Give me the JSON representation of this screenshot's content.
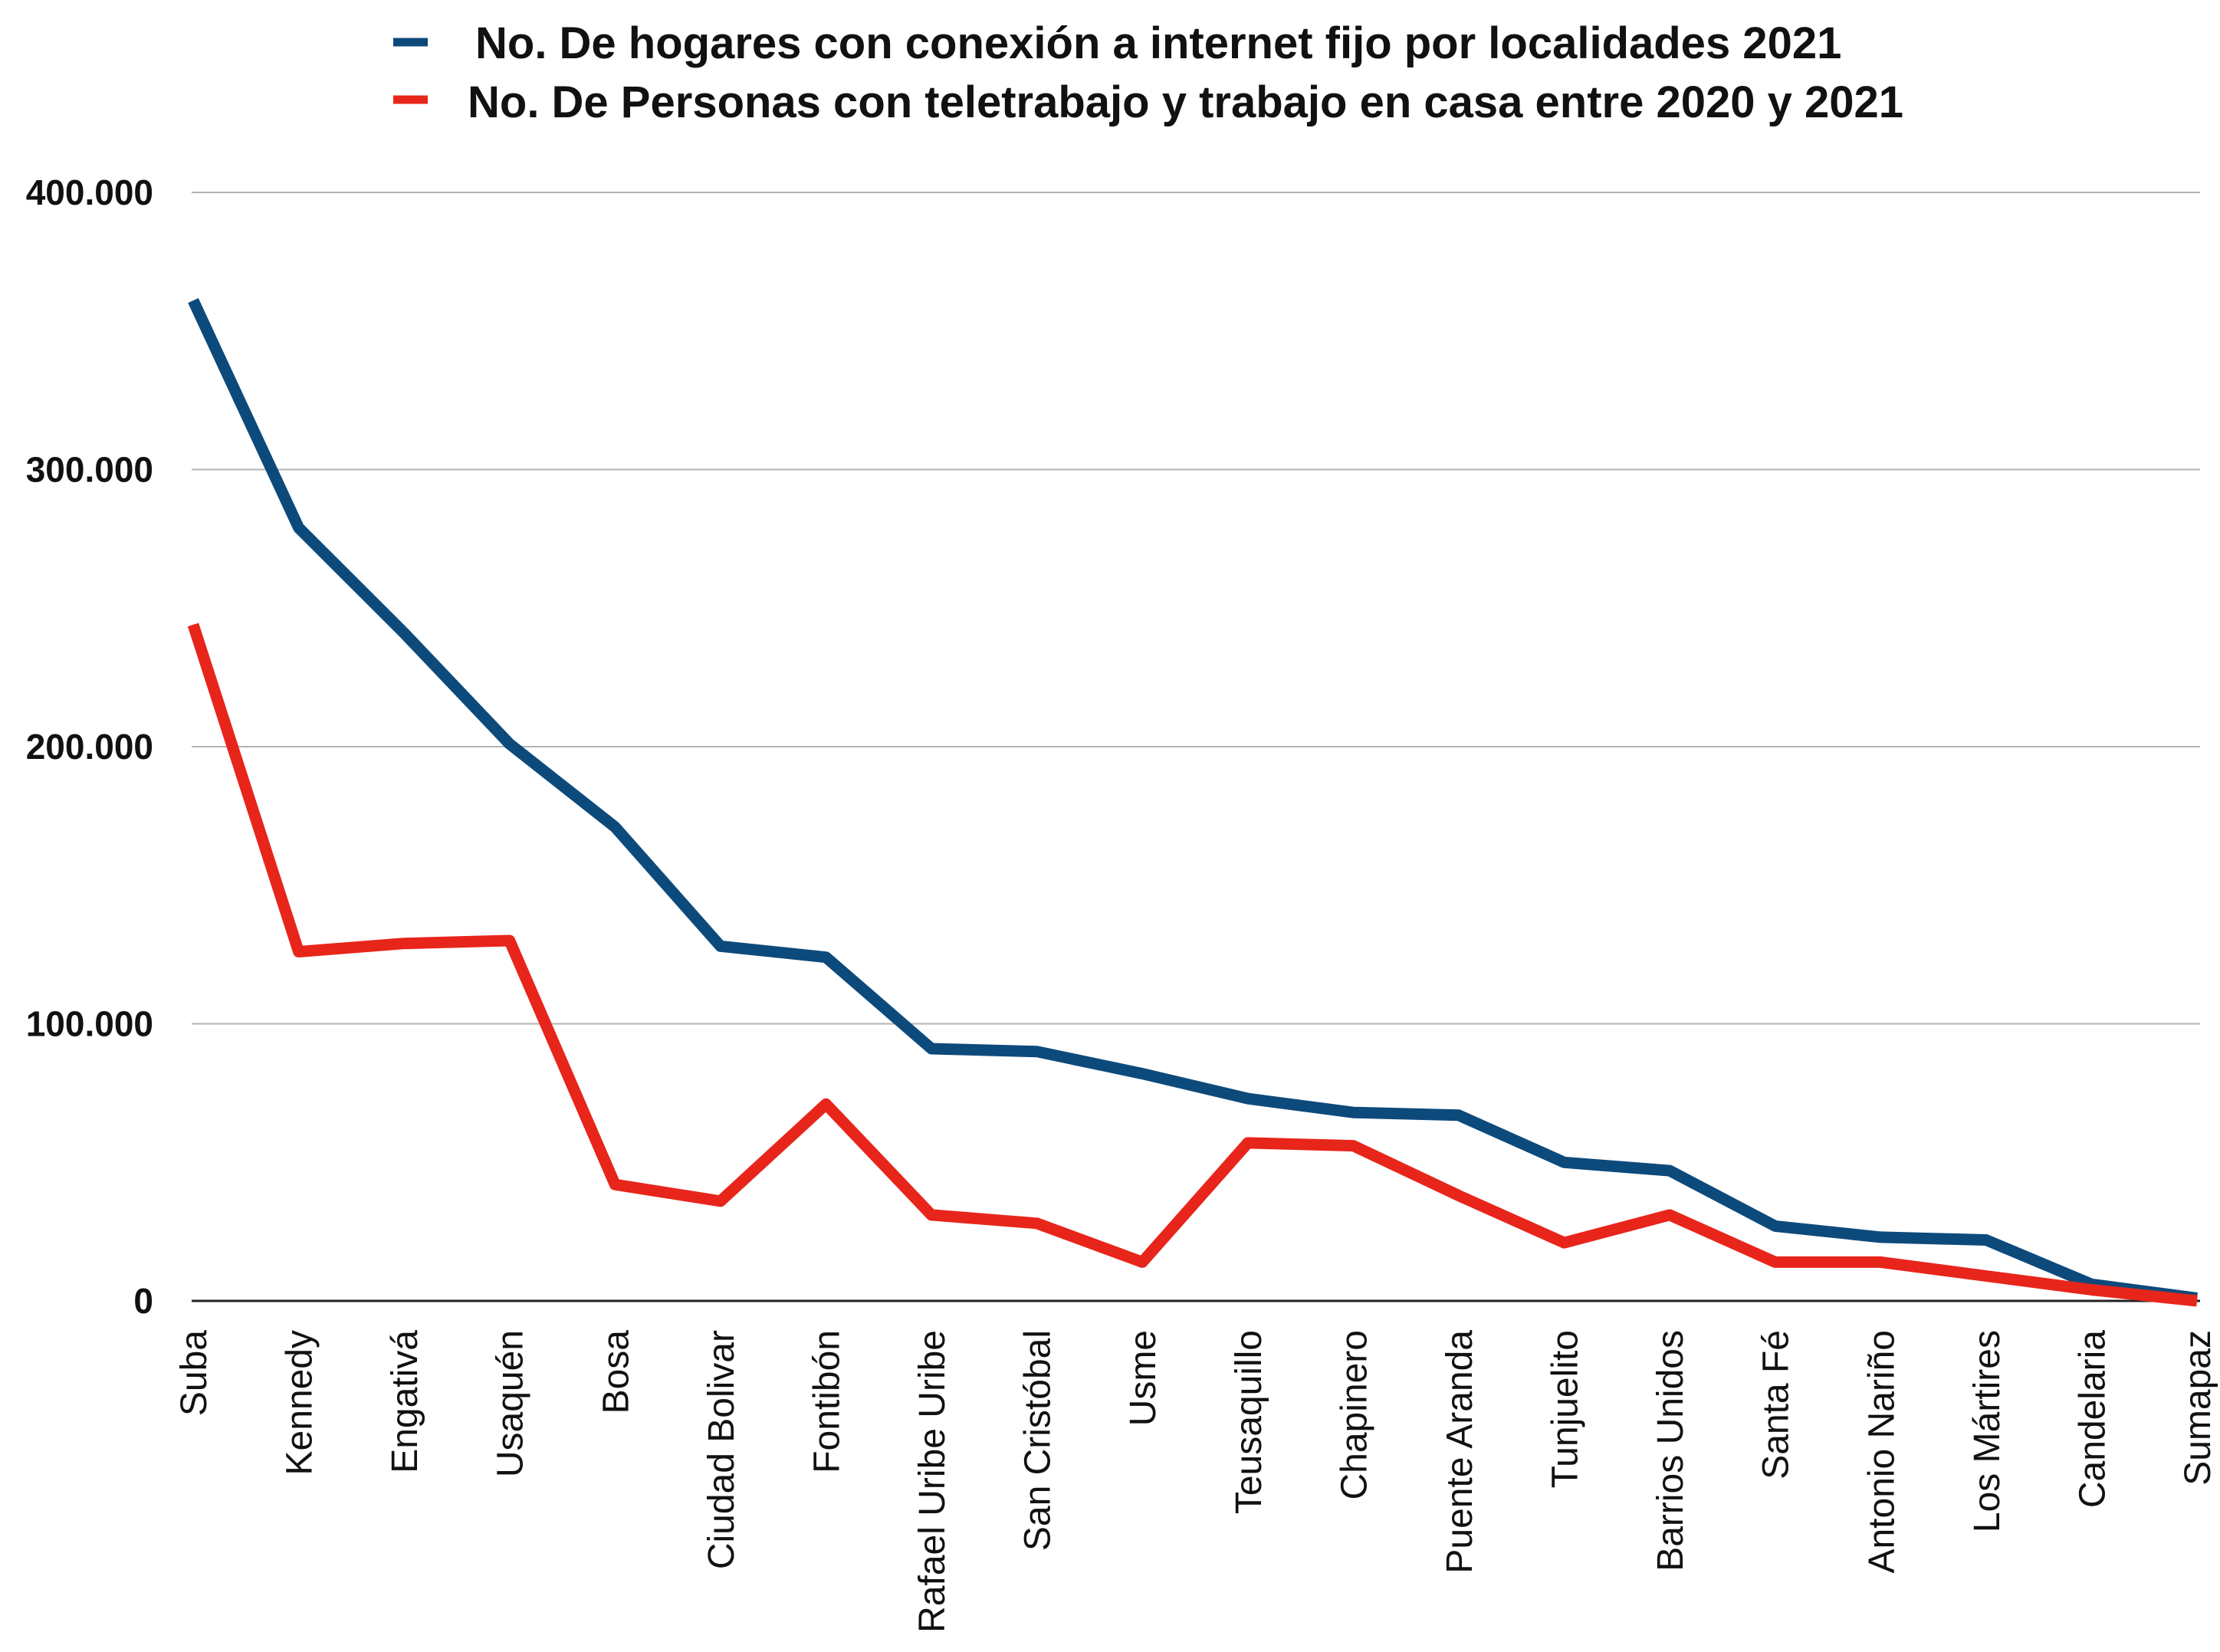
{
  "chart_data": {
    "type": "line",
    "title": "",
    "xlabel": "",
    "ylabel": "",
    "ylim": [
      0,
      400000
    ],
    "yticks": [
      0,
      100000,
      200000,
      300000,
      400000
    ],
    "ytick_labels": [
      "0",
      "100.000",
      "200.000",
      "300.000",
      "400.000"
    ],
    "grid": true,
    "legend_position": "top",
    "categories": [
      "Suba",
      "Kennedy",
      "Engativá",
      "Usaquén",
      "Bosa",
      "Ciudad Bolivar",
      "Fontibón",
      "Rafael Uribe Uribe",
      "San Cristóbal",
      "Usme",
      "Teusaquillo",
      "Chapinero",
      "Puente Aranda",
      "Tunjuelito",
      "Barrios Unidos",
      "Santa Fé",
      "Antonio Nariño",
      "Los Mártires",
      "Candelaria",
      "Sumapaz"
    ],
    "series": [
      {
        "name": "No. De hogares con conexión a internet fijo por localidades 2021",
        "color": "#0d4a7c",
        "values": [
          361000,
          279000,
          241000,
          201000,
          171000,
          128000,
          124000,
          91000,
          90000,
          82000,
          73000,
          68000,
          67000,
          50000,
          47000,
          27000,
          23000,
          22000,
          6000,
          1000
        ]
      },
      {
        "name": "No. De Personas con teletrabajo y trabajo en casa entre 2020 y 2021",
        "color": "#e8251b",
        "values": [
          244000,
          126000,
          129000,
          130000,
          42000,
          36000,
          71000,
          31000,
          28000,
          14000,
          57000,
          56000,
          38000,
          21000,
          31000,
          14000,
          14000,
          9000,
          4000,
          0
        ]
      }
    ]
  }
}
